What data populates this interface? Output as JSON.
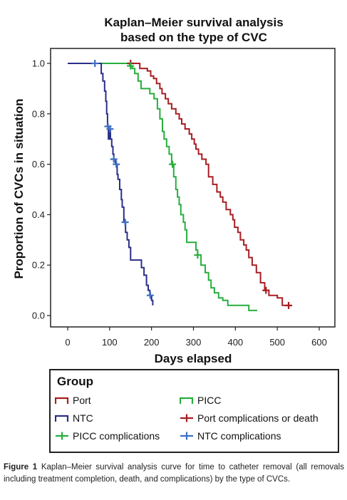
{
  "chart_data": {
    "type": "line",
    "title_lines": [
      "Kaplan–Meier survival analysis",
      "based on the type of CVC"
    ],
    "xlabel": "Days elapsed",
    "ylabel": "Proportion of CVCs in situation",
    "xlim": [
      0,
      600
    ],
    "ylim": [
      0,
      1.0
    ],
    "x_ticks": [
      0,
      100,
      200,
      300,
      400,
      500,
      600
    ],
    "y_ticks": [
      0.0,
      0.2,
      0.4,
      0.6,
      0.8,
      1.0
    ],
    "x_tick_labels": [
      "0",
      "100",
      "200",
      "300",
      "400",
      "500",
      "600"
    ],
    "y_tick_labels": [
      "0.0",
      "0.2",
      "0.4",
      "0.6",
      "0.8",
      "1.0"
    ],
    "grid": false,
    "legend_placement": "bottom",
    "series": [
      {
        "name": "Port",
        "color": "#a81e22",
        "steps": [
          [
            0,
            1.0
          ],
          [
            150,
            1.0
          ],
          [
            160,
            1.0
          ],
          [
            172,
            0.98
          ],
          [
            190,
            0.97
          ],
          [
            198,
            0.95
          ],
          [
            205,
            0.94
          ],
          [
            212,
            0.92
          ],
          [
            220,
            0.9
          ],
          [
            225,
            0.88
          ],
          [
            233,
            0.86
          ],
          [
            240,
            0.84
          ],
          [
            248,
            0.82
          ],
          [
            258,
            0.8
          ],
          [
            266,
            0.78
          ],
          [
            272,
            0.76
          ],
          [
            280,
            0.74
          ],
          [
            290,
            0.72
          ],
          [
            296,
            0.7
          ],
          [
            302,
            0.68
          ],
          [
            306,
            0.66
          ],
          [
            312,
            0.64
          ],
          [
            320,
            0.62
          ],
          [
            330,
            0.6
          ],
          [
            336,
            0.55
          ],
          [
            346,
            0.52
          ],
          [
            356,
            0.49
          ],
          [
            364,
            0.47
          ],
          [
            370,
            0.45
          ],
          [
            378,
            0.42
          ],
          [
            388,
            0.4
          ],
          [
            394,
            0.38
          ],
          [
            398,
            0.35
          ],
          [
            406,
            0.33
          ],
          [
            412,
            0.3
          ],
          [
            420,
            0.28
          ],
          [
            426,
            0.26
          ],
          [
            432,
            0.23
          ],
          [
            440,
            0.2
          ],
          [
            450,
            0.17
          ],
          [
            460,
            0.13
          ],
          [
            470,
            0.1
          ],
          [
            480,
            0.08
          ],
          [
            500,
            0.07
          ],
          [
            512,
            0.04
          ],
          [
            530,
            0.04
          ]
        ],
        "censored_x": [
          150,
          473,
          527
        ]
      },
      {
        "name": "PICC",
        "color": "#27ae3e",
        "steps": [
          [
            0,
            1.0
          ],
          [
            140,
            1.0
          ],
          [
            148,
            0.99
          ],
          [
            154,
            0.98
          ],
          [
            160,
            0.96
          ],
          [
            168,
            0.93
          ],
          [
            175,
            0.9
          ],
          [
            190,
            0.9
          ],
          [
            196,
            0.88
          ],
          [
            206,
            0.86
          ],
          [
            214,
            0.82
          ],
          [
            220,
            0.78
          ],
          [
            226,
            0.73
          ],
          [
            230,
            0.7
          ],
          [
            236,
            0.67
          ],
          [
            242,
            0.64
          ],
          [
            248,
            0.6
          ],
          [
            253,
            0.55
          ],
          [
            258,
            0.5
          ],
          [
            262,
            0.47
          ],
          [
            266,
            0.44
          ],
          [
            270,
            0.4
          ],
          [
            276,
            0.37
          ],
          [
            280,
            0.34
          ],
          [
            284,
            0.29
          ],
          [
            302,
            0.29
          ],
          [
            306,
            0.26
          ],
          [
            310,
            0.24
          ],
          [
            318,
            0.2
          ],
          [
            328,
            0.17
          ],
          [
            336,
            0.14
          ],
          [
            342,
            0.11
          ],
          [
            350,
            0.09
          ],
          [
            360,
            0.07
          ],
          [
            370,
            0.06
          ],
          [
            382,
            0.04
          ],
          [
            420,
            0.04
          ],
          [
            432,
            0.02
          ],
          [
            452,
            0.02
          ]
        ],
        "censored_x": [
          150,
          250,
          310
        ]
      },
      {
        "name": "NTC",
        "color": "#2a2f87",
        "steps": [
          [
            0,
            1.0
          ],
          [
            76,
            1.0
          ],
          [
            80,
            0.96
          ],
          [
            84,
            0.93
          ],
          [
            88,
            0.89
          ],
          [
            91,
            0.85
          ],
          [
            93,
            0.8
          ],
          [
            95,
            0.75
          ],
          [
            97,
            0.7
          ],
          [
            100,
            0.74
          ],
          [
            102,
            0.7
          ],
          [
            105,
            0.67
          ],
          [
            108,
            0.64
          ],
          [
            110,
            0.62
          ],
          [
            114,
            0.6
          ],
          [
            118,
            0.56
          ],
          [
            120,
            0.54
          ],
          [
            124,
            0.5
          ],
          [
            128,
            0.46
          ],
          [
            130,
            0.43
          ],
          [
            134,
            0.37
          ],
          [
            138,
            0.33
          ],
          [
            142,
            0.3
          ],
          [
            146,
            0.27
          ],
          [
            150,
            0.22
          ],
          [
            170,
            0.22
          ],
          [
            176,
            0.19
          ],
          [
            182,
            0.16
          ],
          [
            188,
            0.12
          ],
          [
            192,
            0.1
          ],
          [
            196,
            0.08
          ],
          [
            200,
            0.06
          ],
          [
            203,
            0.04
          ]
        ],
        "censored_x": [
          65,
          96,
          101,
          110,
          116,
          137,
          197
        ]
      }
    ],
    "censor_series": [
      {
        "name": "Port complications or death",
        "color": "#a81e22"
      },
      {
        "name": "PICC complications",
        "color": "#27ae3e"
      },
      {
        "name": "NTC complications",
        "color": "#3f6fc4"
      }
    ]
  },
  "legend": {
    "title": "Group",
    "port": "Port",
    "picc": "PICC",
    "ntc": "NTC",
    "port_complications": "Port complications or death",
    "picc_complications": "PICC complications",
    "ntc_complications": "NTC complications"
  },
  "caption": {
    "label": "Figure 1",
    "text": "Kaplan–Meier survival analysis curve for time to catheter removal (all removals including treatment completion, death, and complications) by the type of CVCs."
  }
}
